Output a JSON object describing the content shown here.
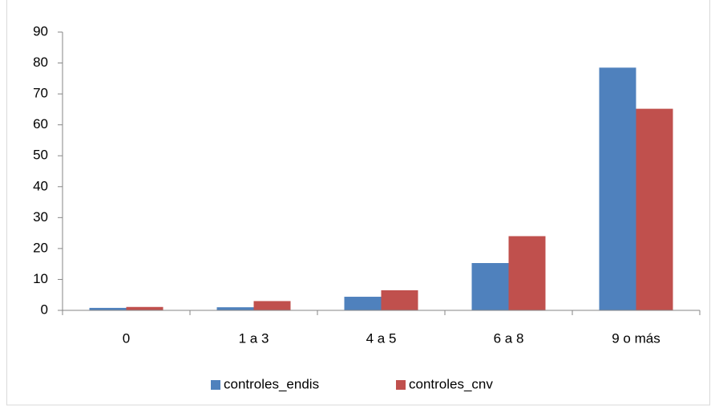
{
  "chart_data": {
    "type": "bar",
    "categories": [
      "0",
      "1 a 3",
      "4 a 5",
      "6 a 8",
      "9 o más"
    ],
    "series": [
      {
        "name": "controles_endis",
        "color": "#4f81bd",
        "values": [
          0.8,
          1.0,
          4.4,
          15.3,
          78.5
        ]
      },
      {
        "name": "controles_cnv",
        "color": "#c0504d",
        "values": [
          1.1,
          3.0,
          6.5,
          24.0,
          65.2
        ]
      }
    ],
    "ylim": [
      0,
      90
    ],
    "yticks": [
      0,
      10,
      20,
      30,
      40,
      50,
      60,
      70,
      80,
      90
    ],
    "grid": false,
    "legend": "bottom"
  }
}
